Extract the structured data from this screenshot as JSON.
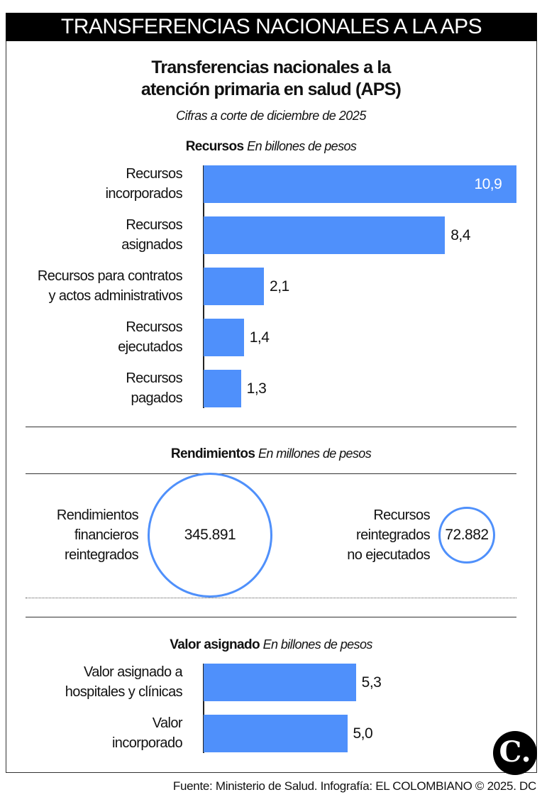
{
  "header": "TRANSFERENCIAS NACIONALES A LA APS",
  "title_line1": "Transferencias nacionales a la",
  "title_line2": "atención primaria en salud (APS)",
  "subtitle": "Cifras a corte de diciembre de 2025",
  "colors": {
    "bar": "#4f90fb",
    "header_bg": "#000000"
  },
  "chart_data": [
    {
      "type": "bar",
      "orientation": "horizontal",
      "title": "Recursos",
      "unit": "En billones de pesos",
      "categories": [
        [
          "Recursos",
          "incorporados"
        ],
        [
          "Recursos",
          "asignados"
        ],
        [
          "Recursos para contratos",
          "y actos administrativos"
        ],
        [
          "Recursos",
          "ejecutados"
        ],
        [
          "Recursos",
          "pagados"
        ]
      ],
      "values": [
        10.9,
        8.4,
        2.1,
        1.4,
        1.3
      ],
      "labels": [
        "10,9",
        "8,4",
        "2,1",
        "1,4",
        "1,3"
      ]
    },
    {
      "type": "bubble",
      "title": "Rendimientos",
      "unit": "En millones de pesos",
      "categories": [
        [
          "Rendimientos",
          "financieros",
          "reintegrados"
        ],
        [
          "Recursos",
          "reintegrados",
          "no ejecutados"
        ]
      ],
      "values": [
        345891,
        72882
      ],
      "labels": [
        "345.891",
        "72.882"
      ]
    },
    {
      "type": "bar",
      "orientation": "horizontal",
      "title": "Valor asignado",
      "unit": "En billones de pesos",
      "categories": [
        [
          "Valor asignado a",
          "hospitales y clínicas"
        ],
        [
          "Valor",
          "incorporado"
        ]
      ],
      "values": [
        5.3,
        5.0
      ],
      "labels": [
        "5,3",
        "5,0"
      ]
    }
  ],
  "logo": "C.",
  "source": "Fuente: Ministerio de Salud. Infografía: EL COLOMBIANO © 2025. DC"
}
